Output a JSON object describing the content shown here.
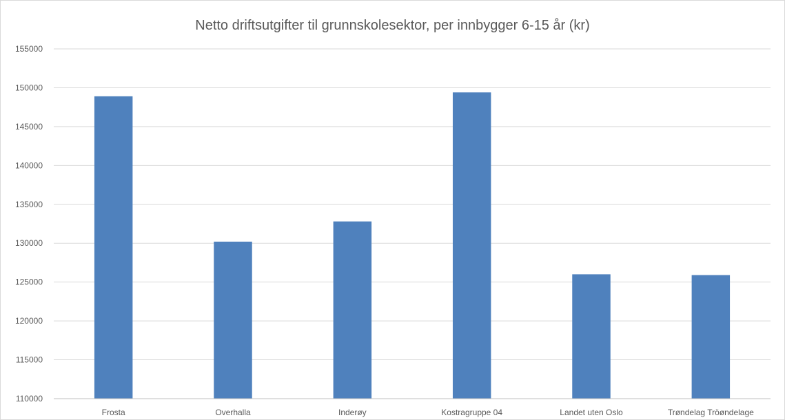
{
  "chart_data": {
    "type": "bar",
    "title": "Netto driftsutgifter til grunnskolesektor, per innbygger 6-15 år (kr)",
    "xlabel": "",
    "ylabel": "",
    "categories": [
      "Frosta",
      "Overhalla",
      "Inderøy",
      "Kostragruppe 04",
      "Landet uten Oslo",
      "Trøndelag Tröøndelage"
    ],
    "values": [
      148900,
      130200,
      132800,
      149400,
      126000,
      125900
    ],
    "ylim": [
      110000,
      155000
    ],
    "yticks": [
      110000,
      115000,
      120000,
      125000,
      130000,
      135000,
      140000,
      145000,
      150000,
      155000
    ],
    "ytick_labels": [
      "110000",
      "115000",
      "120000",
      "125000",
      "130000",
      "135000",
      "140000",
      "145000",
      "150000",
      "155000"
    ],
    "grid": true,
    "legend": "none",
    "bar_color": "#4f81bd",
    "grid_color": "#d9d9d9",
    "text_color": "#595959"
  }
}
